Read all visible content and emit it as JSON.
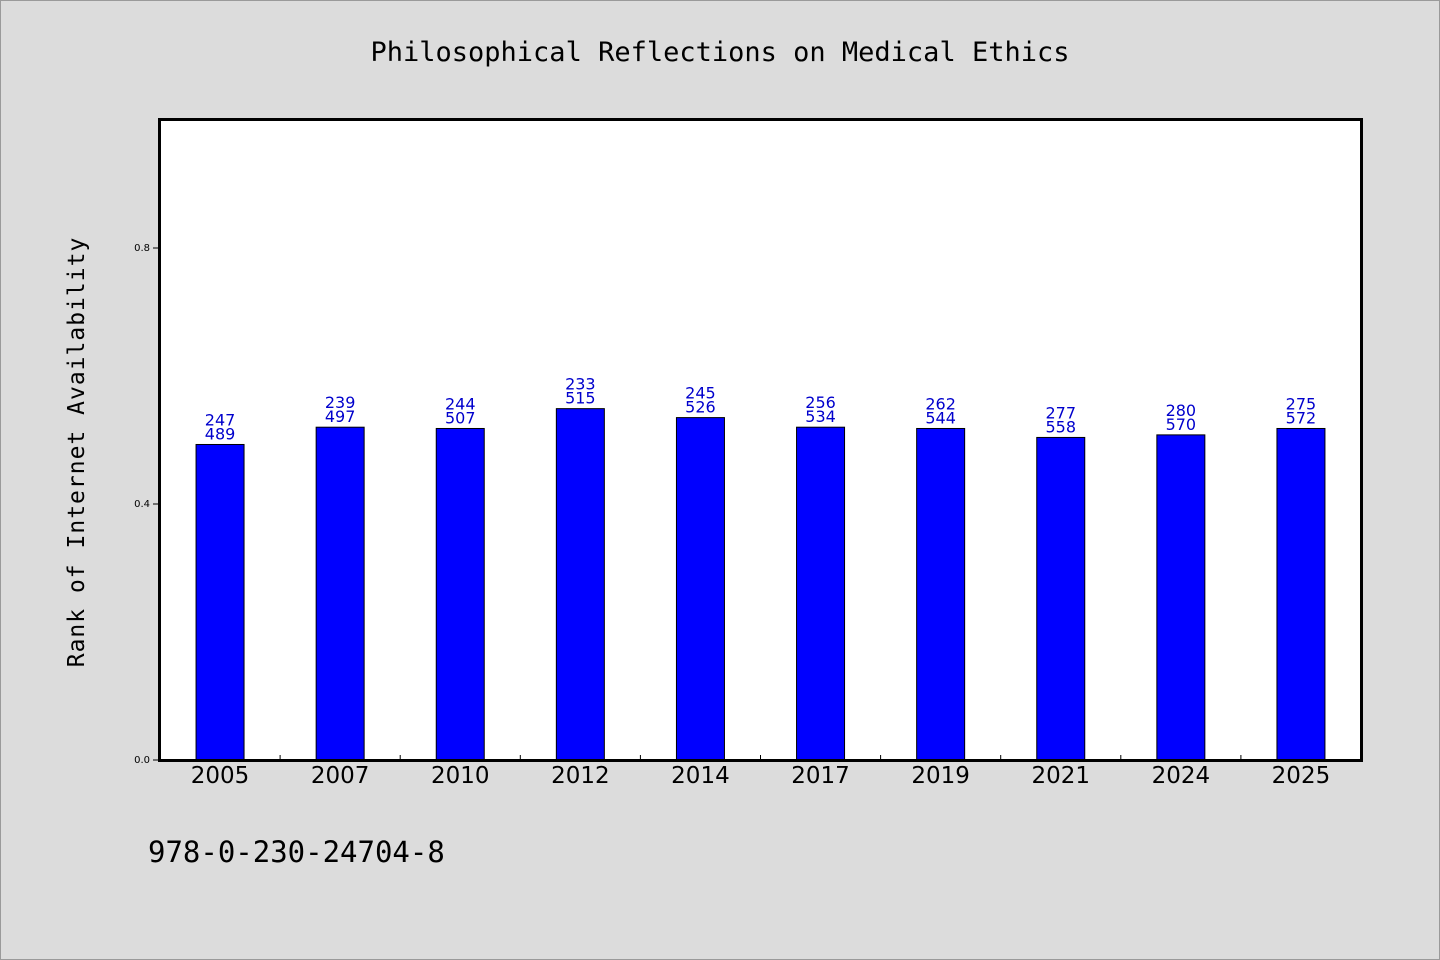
{
  "chart_data": {
    "type": "bar",
    "title": "Philosophical Reflections on Medical Ethics",
    "xlabel": "",
    "ylabel": "Rank of Internet Availability",
    "categories": [
      "2005",
      "2007",
      "2010",
      "2012",
      "2014",
      "2017",
      "2019",
      "2021",
      "2024",
      "2025"
    ],
    "values": [
      0.493,
      0.52,
      0.518,
      0.549,
      0.535,
      0.52,
      0.518,
      0.504,
      0.508,
      0.518
    ],
    "labels_top": [
      "247",
      "239",
      "244",
      "233",
      "245",
      "256",
      "262",
      "277",
      "280",
      "275"
    ],
    "labels_bottom": [
      "489",
      "497",
      "507",
      "515",
      "526",
      "534",
      "544",
      "558",
      "570",
      "572"
    ],
    "yticks": [
      0.0,
      0.4,
      0.8
    ],
    "ytick_labels": [
      "0.0",
      "0.4",
      "0.8"
    ],
    "ylim": [
      0,
      1.0
    ],
    "grid": false,
    "bar_color": "#0000ff",
    "label_color": "#0000cc",
    "background_color": "#dcdcdc"
  },
  "footer": {
    "isbn": "978-0-230-24704-8"
  }
}
